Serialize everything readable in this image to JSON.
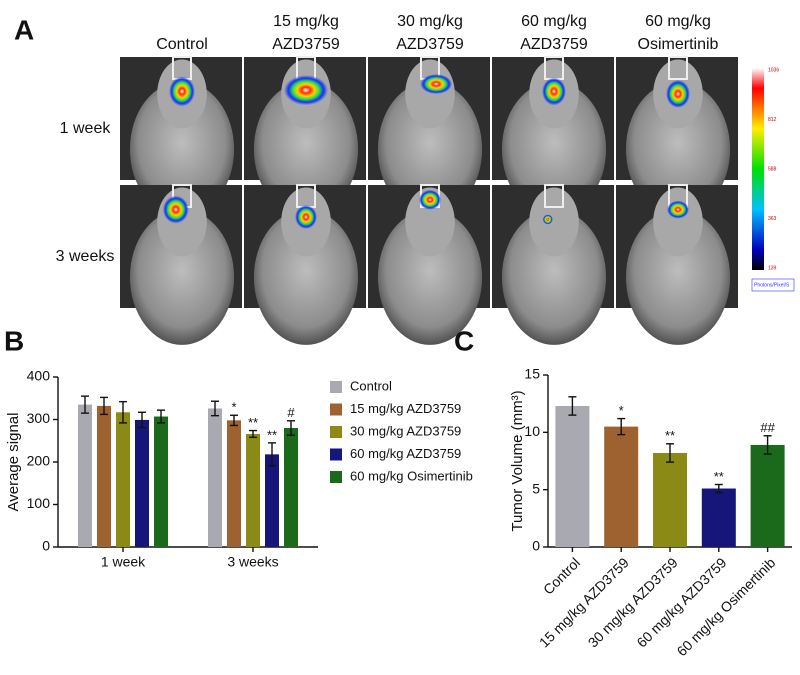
{
  "panel_a": {
    "label": "A",
    "column_headers": [
      [
        "Control"
      ],
      [
        "15 mg/kg",
        "AZD3759"
      ],
      [
        "30 mg/kg",
        "AZD3759"
      ],
      [
        "60 mg/kg",
        "AZD3759"
      ],
      [
        "60 mg/kg",
        "Osimertinib"
      ]
    ],
    "row_labels": [
      "1 week",
      "3 weeks"
    ],
    "colorbar_labels": [
      "1036",
      "812",
      "588",
      "363",
      "139"
    ],
    "colorbar_unit": "Photons/Pixel/S"
  },
  "chart_data": [
    {
      "type": "bar",
      "panel_label": "B",
      "y_label": "Average signal",
      "categories": [
        "1 week",
        "3 weeks"
      ],
      "series": [
        {
          "name": "Control",
          "color": "#a9a9b1",
          "values": [
            335,
            326
          ],
          "errors": [
            20,
            17
          ],
          "annotations": [
            null,
            null
          ]
        },
        {
          "name": "15 mg/kg AZD3759",
          "color": "#9e6230",
          "values": [
            332,
            298
          ],
          "errors": [
            20,
            12
          ],
          "annotations": [
            null,
            "*"
          ]
        },
        {
          "name": "30 mg/kg AZD3759",
          "color": "#8c8a16",
          "values": [
            317,
            266
          ],
          "errors": [
            25,
            8
          ],
          "annotations": [
            null,
            "**"
          ]
        },
        {
          "name": "60 mg/kg AZD3759",
          "color": "#16167a",
          "values": [
            299,
            218
          ],
          "errors": [
            18,
            27
          ],
          "annotations": [
            null,
            "**"
          ]
        },
        {
          "name": "60 mg/kg Osimertinib",
          "color": "#1b6a1b",
          "values": [
            307,
            280
          ],
          "errors": [
            15,
            17
          ],
          "annotations": [
            null,
            "#"
          ]
        }
      ],
      "ylim": [
        0,
        400
      ],
      "yticks": [
        0,
        100,
        200,
        300,
        400
      ],
      "legend": "right"
    },
    {
      "type": "bar",
      "panel_label": "C",
      "y_label": "Tumor Volume (mm³)",
      "categories": [
        "Control",
        "15 mg/kg AZD3759",
        "30 mg/kg AZD3759",
        "60 mg/kg AZD3759",
        "60 mg/kg Osimertinib"
      ],
      "values": [
        12.3,
        10.5,
        8.2,
        5.1,
        8.9
      ],
      "errors": [
        0.8,
        0.7,
        0.8,
        0.35,
        0.8
      ],
      "annotations": [
        null,
        "*",
        "**",
        "**",
        "##"
      ],
      "colors": [
        "#a9a9b1",
        "#9e6230",
        "#8c8a16",
        "#16167a",
        "#1b6a1b"
      ],
      "ylim": [
        0,
        15
      ],
      "yticks": [
        0,
        5,
        10,
        15
      ]
    }
  ]
}
